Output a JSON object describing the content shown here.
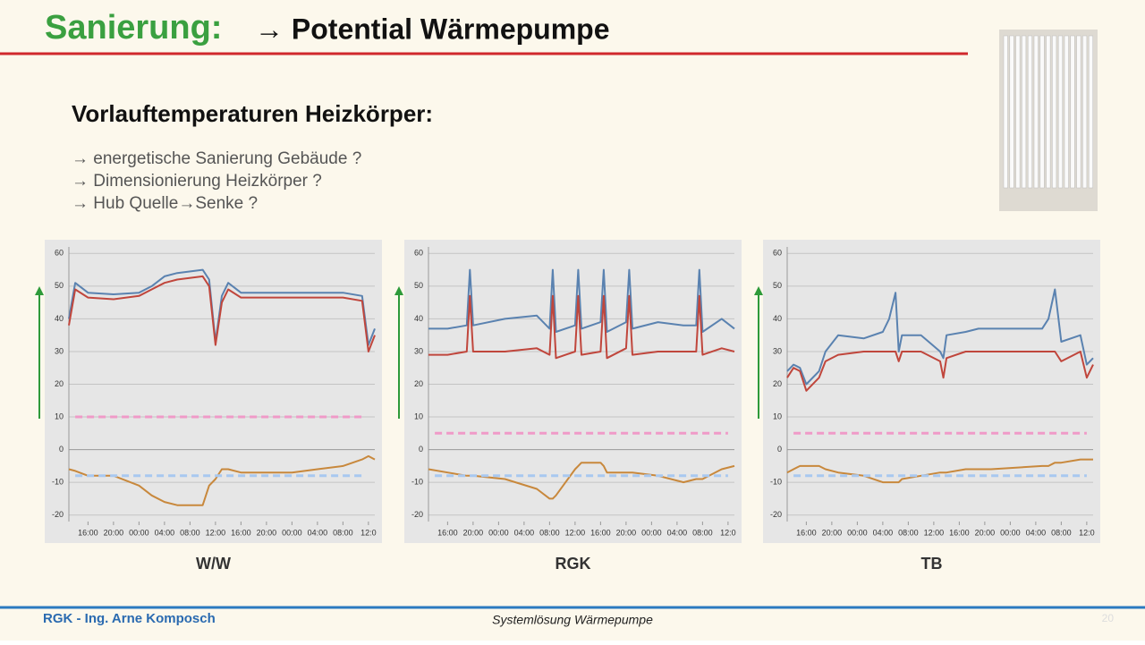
{
  "header": {
    "title": "Sanierung:",
    "subtitle": "→ Potential Wärmepumpe"
  },
  "section": {
    "heading": "Vorlauftemperaturen Heizkörper:",
    "bullets": [
      "→ energetische Sanierung Gebäude ?",
      "→ Dimensionierung Heizkörper ?",
      "→ Hub Quelle→Senke ?"
    ]
  },
  "footer": {
    "author": "RGK - Ing. Arne Komposch",
    "center": "Systemlösung Wärmepumpe",
    "page": "20"
  },
  "chart_data": [
    {
      "type": "line",
      "title": "W/W",
      "xlim": [
        0,
        48
      ],
      "ylim": [
        -22,
        62
      ],
      "yticks": [
        -20,
        -10,
        0,
        10,
        20,
        30,
        40,
        50,
        60
      ],
      "grid": true,
      "xticks": [
        {
          "value": 3,
          "label": "16:00"
        },
        {
          "value": 7,
          "label": "20:00"
        },
        {
          "value": 11,
          "label": "00:00"
        },
        {
          "value": 15,
          "label": "04:00"
        },
        {
          "value": 19,
          "label": "08:00"
        },
        {
          "value": 23,
          "label": "12:00"
        },
        {
          "value": 27,
          "label": "16:00"
        },
        {
          "value": 31,
          "label": "20:00"
        },
        {
          "value": 35,
          "label": "00:00"
        },
        {
          "value": 39,
          "label": "04:00"
        },
        {
          "value": 43,
          "label": "08:00"
        },
        {
          "value": 47,
          "label": "12:0"
        }
      ],
      "x": [
        0,
        1,
        3,
        7,
        11,
        13,
        15,
        17,
        21,
        22,
        23,
        24,
        25,
        27,
        31,
        35,
        39,
        43,
        46,
        47,
        48
      ],
      "series": [
        {
          "color": "#5a82b0",
          "values": [
            40,
            51,
            48,
            47.5,
            48,
            50,
            53,
            54,
            55,
            52,
            33,
            47,
            51,
            48,
            48,
            48,
            48,
            48,
            47,
            32,
            37
          ]
        },
        {
          "color": "#c0463c",
          "values": [
            38,
            49,
            46.5,
            46,
            47,
            49,
            51,
            52,
            53,
            50,
            32,
            45,
            49,
            46.5,
            46.5,
            46.5,
            46.5,
            46.5,
            45.5,
            30,
            35
          ]
        },
        {
          "color": "#c8883c",
          "values": [
            -6,
            -6.5,
            -8,
            -8,
            -11,
            -14,
            -16,
            -17,
            -17,
            -11,
            -9,
            -6,
            -6,
            -7,
            -7,
            -7,
            -6,
            -5,
            -3,
            -2,
            -3
          ]
        },
        {
          "color": "#f09ac8",
          "dashed": true,
          "x": [
            1,
            46
          ],
          "values": [
            10,
            10
          ]
        },
        {
          "color": "#a8c8f0",
          "dashed": true,
          "x": [
            1,
            46
          ],
          "values": [
            -8,
            -8
          ]
        }
      ]
    },
    {
      "type": "line",
      "title": "RGK",
      "xlim": [
        0,
        48
      ],
      "ylim": [
        -22,
        62
      ],
      "yticks": [
        -20,
        -10,
        0,
        10,
        20,
        30,
        40,
        50,
        60
      ],
      "grid": true,
      "xticks": [
        {
          "value": 3,
          "label": "16:00"
        },
        {
          "value": 7,
          "label": "20:00"
        },
        {
          "value": 11,
          "label": "00:00"
        },
        {
          "value": 15,
          "label": "04:00"
        },
        {
          "value": 19,
          "label": "08:00"
        },
        {
          "value": 23,
          "label": "12:00"
        },
        {
          "value": 27,
          "label": "16:00"
        },
        {
          "value": 31,
          "label": "20:00"
        },
        {
          "value": 35,
          "label": "00:00"
        },
        {
          "value": 39,
          "label": "04:00"
        },
        {
          "value": 43,
          "label": "08:00"
        },
        {
          "value": 47,
          "label": "12:0"
        }
      ],
      "x": [
        0,
        3,
        6,
        6.5,
        7,
        12,
        17,
        19,
        19.5,
        20,
        23,
        23.5,
        24,
        27,
        27.5,
        28,
        31,
        31.5,
        32,
        36,
        40,
        42,
        42.5,
        43,
        46,
        48
      ],
      "series": [
        {
          "color": "#5a82b0",
          "values": [
            37,
            37,
            38,
            55,
            38,
            40,
            41,
            37,
            55,
            36,
            38,
            55,
            37,
            39,
            55,
            36,
            39,
            55,
            37,
            39,
            38,
            38,
            55,
            36,
            40,
            37
          ]
        },
        {
          "color": "#c0463c",
          "values": [
            29,
            29,
            30,
            47,
            30,
            30,
            31,
            29,
            47,
            28,
            30,
            47,
            29,
            30,
            47,
            28,
            31,
            47,
            29,
            30,
            30,
            30,
            47,
            29,
            31,
            30
          ]
        },
        {
          "color": "#c8883c",
          "values": [
            -6,
            -7,
            -8,
            -8,
            -8,
            -9,
            -12,
            -15,
            -15,
            -14,
            -6,
            -5,
            -4,
            -4,
            -5,
            -7,
            -7,
            -7,
            -7,
            -8,
            -10,
            -9,
            -9,
            -9,
            -6,
            -5
          ]
        },
        {
          "color": "#f09ac8",
          "dashed": true,
          "x": [
            1,
            47
          ],
          "values": [
            5,
            5
          ]
        },
        {
          "color": "#a8c8f0",
          "dashed": true,
          "x": [
            1,
            47
          ],
          "values": [
            -8,
            -8
          ]
        }
      ]
    },
    {
      "type": "line",
      "title": "TB",
      "xlim": [
        0,
        48
      ],
      "ylim": [
        -22,
        62
      ],
      "yticks": [
        -20,
        -10,
        0,
        10,
        20,
        30,
        40,
        50,
        60
      ],
      "grid": true,
      "xticks": [
        {
          "value": 3,
          "label": "16:00"
        },
        {
          "value": 7,
          "label": "20:00"
        },
        {
          "value": 11,
          "label": "00:00"
        },
        {
          "value": 15,
          "label": "04:00"
        },
        {
          "value": 19,
          "label": "08:00"
        },
        {
          "value": 23,
          "label": "12:00"
        },
        {
          "value": 27,
          "label": "16:00"
        },
        {
          "value": 31,
          "label": "20:00"
        },
        {
          "value": 35,
          "label": "00:00"
        },
        {
          "value": 39,
          "label": "04:00"
        },
        {
          "value": 43,
          "label": "08:00"
        },
        {
          "value": 47,
          "label": "12:0"
        }
      ],
      "x": [
        0,
        1,
        2,
        3,
        5,
        6,
        8,
        12,
        15,
        16,
        17,
        17.5,
        18,
        21,
        24,
        24.5,
        25,
        28,
        30,
        32,
        40,
        41,
        42,
        43,
        46,
        47,
        48
      ],
      "series": [
        {
          "color": "#5a82b0",
          "values": [
            24,
            26,
            25,
            20,
            24,
            30,
            35,
            34,
            36,
            40,
            48,
            30,
            35,
            35,
            30,
            28,
            35,
            36,
            37,
            37,
            37,
            40,
            49,
            33,
            35,
            26,
            28
          ]
        },
        {
          "color": "#c0463c",
          "values": [
            22,
            25,
            24,
            18,
            22,
            27,
            29,
            30,
            30,
            30,
            30,
            27,
            30,
            30,
            27,
            22,
            28,
            30,
            30,
            30,
            30,
            30,
            30,
            27,
            30,
            22,
            26
          ]
        },
        {
          "color": "#c8883c",
          "values": [
            -7,
            -6,
            -5,
            -5,
            -5,
            -6,
            -7,
            -8,
            -10,
            -10,
            -10,
            -10,
            -9,
            -8,
            -7,
            -7,
            -7,
            -6,
            -6,
            -6,
            -5,
            -5,
            -4,
            -4,
            -3,
            -3,
            -3
          ]
        },
        {
          "color": "#f09ac8",
          "dashed": true,
          "x": [
            1,
            47
          ],
          "values": [
            5,
            5
          ]
        },
        {
          "color": "#a8c8f0",
          "dashed": true,
          "x": [
            1,
            47
          ],
          "values": [
            -8,
            -8
          ]
        }
      ]
    }
  ]
}
